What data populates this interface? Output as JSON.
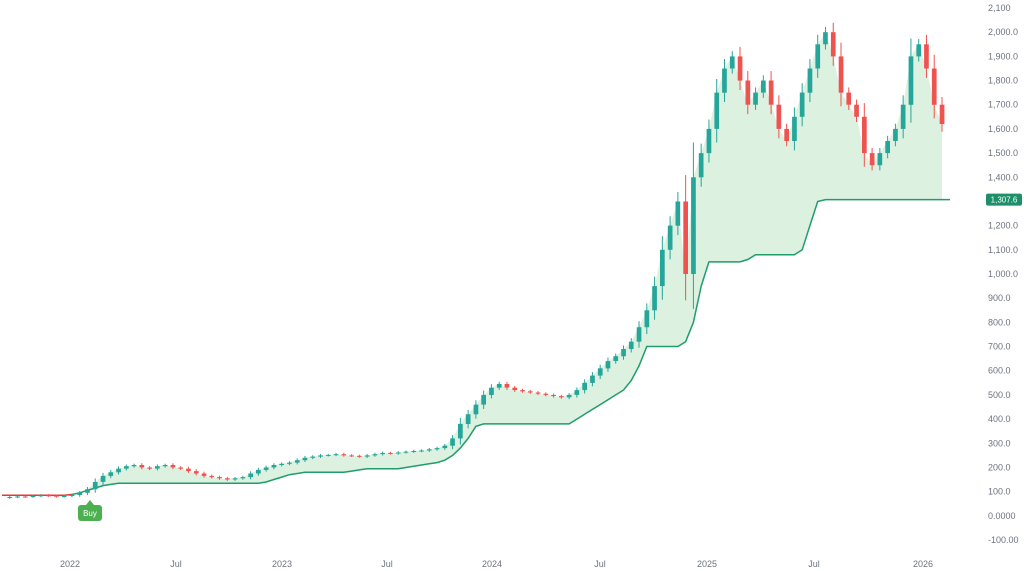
{
  "colors": {
    "background": "#ffffff",
    "up_candle": "#26a69a",
    "down_candle": "#ef5350",
    "stop_line_green": "#1f9d6b",
    "stop_line_red": "#e53935",
    "fill_band": "#d8f0dc",
    "axis_text": "#6b7280",
    "buy_badge": "#4caf50",
    "price_badge": "#1f8f6a"
  },
  "chart_data": {
    "type": "candlestick",
    "x_labels": [
      "2022",
      "Jul",
      "2023",
      "Jul",
      "2024",
      "Jul",
      "2025",
      "Jul",
      "2026"
    ],
    "y_ticks": [
      "2,100",
      "2,000.0",
      "1,900.0",
      "1,800.0",
      "1,700.0",
      "1,600.0",
      "1,500.0",
      "1,400.0",
      "1,300.0",
      "1,200.0",
      "1,100.0",
      "1,000.0",
      "900.0",
      "800.0",
      "700.0",
      "600.0",
      "500.0",
      "400.0",
      "300.0",
      "200.0",
      "100.0",
      "0.0000",
      "-100.00"
    ],
    "ylim": [
      -100,
      2100
    ],
    "last_stop_value_label": "1,307.6",
    "buy_signal_label": "Buy",
    "close_series": [
      75,
      78,
      80,
      79,
      82,
      85,
      83,
      80,
      82,
      86,
      95,
      110,
      140,
      165,
      180,
      195,
      205,
      210,
      200,
      195,
      205,
      210,
      200,
      195,
      185,
      175,
      165,
      160,
      155,
      150,
      155,
      160,
      175,
      190,
      200,
      210,
      215,
      220,
      230,
      240,
      245,
      250,
      252,
      255,
      250,
      248,
      245,
      250,
      255,
      260,
      258,
      262,
      265,
      268,
      270,
      275,
      280,
      290,
      320,
      380,
      420,
      460,
      500,
      530,
      545,
      530,
      520,
      515,
      510,
      505,
      500,
      495,
      490,
      500,
      520,
      550,
      580,
      610,
      640,
      660,
      690,
      720,
      780,
      850,
      950,
      1100,
      1200,
      1300,
      1000,
      1400,
      1500,
      1600,
      1750,
      1850,
      1900,
      1800,
      1700,
      1750,
      1800,
      1700,
      1600,
      1550,
      1650,
      1750,
      1850,
      1950,
      2000,
      1900,
      1750,
      1700,
      1650,
      1500,
      1450,
      1500,
      1550,
      1600,
      1700,
      1900,
      1950,
      1850,
      1700,
      1620
    ],
    "stop_series": [
      85,
      85,
      85,
      85,
      85,
      85,
      85,
      85,
      85,
      88,
      95,
      105,
      115,
      125,
      130,
      135,
      135,
      135,
      135,
      135,
      135,
      135,
      135,
      135,
      135,
      135,
      135,
      135,
      135,
      135,
      135,
      135,
      135,
      135,
      140,
      150,
      160,
      170,
      175,
      180,
      180,
      180,
      180,
      180,
      180,
      185,
      190,
      195,
      195,
      195,
      195,
      195,
      200,
      205,
      210,
      215,
      220,
      230,
      250,
      280,
      320,
      370,
      380,
      380,
      380,
      380,
      380,
      380,
      380,
      380,
      380,
      380,
      380,
      380,
      400,
      420,
      440,
      460,
      480,
      500,
      520,
      560,
      620,
      700,
      700,
      700,
      700,
      700,
      720,
      800,
      950,
      1050,
      1050,
      1050,
      1050,
      1050,
      1060,
      1080,
      1080,
      1080,
      1080,
      1080,
      1080,
      1100,
      1200,
      1300,
      1307.6,
      1307.6,
      1307.6,
      1307.6,
      1307.6,
      1307.6,
      1307.6,
      1307.6,
      1307.6,
      1307.6,
      1307.6,
      1307.6,
      1307.6,
      1307.6,
      1307.6,
      1307.6
    ],
    "series": [
      {
        "name": "",
        "type": "candles"
      },
      {
        "name": "",
        "type": "stop_line"
      }
    ],
    "grid": false,
    "legend": "none"
  }
}
